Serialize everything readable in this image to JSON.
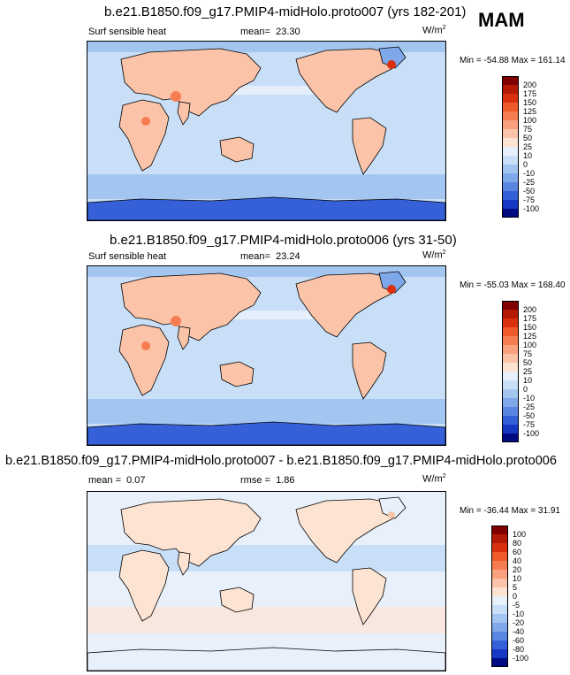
{
  "season": "MAM",
  "panels": [
    {
      "title": "b.e21.B1850.f09_g17.PMIP4-midHolo.proto007 (yrs 182-201)",
      "variable": "Surf sensible heat",
      "mean_label": "mean=",
      "mean_value": "23.30",
      "units": "W/m",
      "units_sup": "2",
      "min_max": "Min = -54.88 Max = 161.14"
    },
    {
      "title": "b.e21.B1850.f09_g17.PMIP4-midHolo.proto006 (yrs 31-50)",
      "variable": "Surf sensible heat",
      "mean_label": "mean=",
      "mean_value": "23.24",
      "units": "W/m",
      "units_sup": "2",
      "min_max": "Min = -55.03 Max = 168.40"
    },
    {
      "title": "b.e21.B1850.f09_g17.PMIP4-midHolo.proto007 - b.e21.B1850.f09_g17.PMIP4-midHolo.proto006",
      "mean_label": "mean =",
      "mean_value": "0.07",
      "rmse_label": "rmse =",
      "rmse_value": "1.86",
      "units": "W/m",
      "units_sup": "2",
      "min_max": "Min = -36.44 Max = 31.91"
    }
  ],
  "colorbar_main": {
    "levels": [
      "200",
      "175",
      "150",
      "125",
      "100",
      "75",
      "50",
      "25",
      "10",
      "0",
      "-10",
      "-25",
      "-50",
      "-75",
      "-100"
    ],
    "colors": [
      "#800000",
      "#b31a06",
      "#d9300f",
      "#ef5a2a",
      "#f67d51",
      "#f9a07e",
      "#fbc3a8",
      "#fde3d2",
      "#e8f1fb",
      "#c8dff7",
      "#a3c6f1",
      "#7fa8ea",
      "#5a86e2",
      "#3560d8",
      "#1638c4",
      "#000a80"
    ]
  },
  "colorbar_diff": {
    "levels": [
      "100",
      "80",
      "60",
      "40",
      "20",
      "10",
      "5",
      "0",
      "-5",
      "-10",
      "-20",
      "-40",
      "-60",
      "-80",
      "-100"
    ],
    "colors": [
      "#800000",
      "#b31a06",
      "#d9300f",
      "#ef5a2a",
      "#f67d51",
      "#f9a07e",
      "#fbc3a8",
      "#fde3d2",
      "#e8f1fb",
      "#c8dff7",
      "#a3c6f1",
      "#7fa8ea",
      "#5a86e2",
      "#3560d8",
      "#1638c4",
      "#000a80"
    ]
  }
}
